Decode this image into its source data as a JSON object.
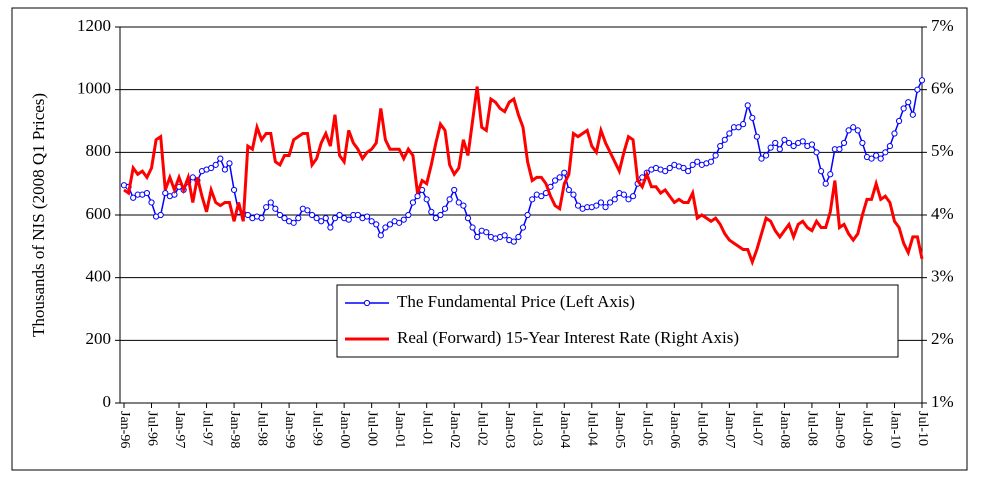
{
  "chart_data": {
    "type": "line",
    "y_label": "Thousands of NIS (2008 Q1 Prices)",
    "categories": [
      "Jan-96",
      null,
      null,
      null,
      null,
      null,
      "Jul-96",
      null,
      null,
      null,
      null,
      null,
      "Jan-97",
      null,
      null,
      null,
      null,
      null,
      "Jul-97",
      null,
      null,
      null,
      null,
      null,
      "Jan-98",
      null,
      null,
      null,
      null,
      null,
      "Jul-98",
      null,
      null,
      null,
      null,
      null,
      "Jan-99",
      null,
      null,
      null,
      null,
      null,
      "Jul-99",
      null,
      null,
      null,
      null,
      null,
      "Jan-00",
      null,
      null,
      null,
      null,
      null,
      "Jul-00",
      null,
      null,
      null,
      null,
      null,
      "Jan-01",
      null,
      null,
      null,
      null,
      null,
      "Jul-01",
      null,
      null,
      null,
      null,
      null,
      "Jan-02",
      null,
      null,
      null,
      null,
      null,
      "Jul-02",
      null,
      null,
      null,
      null,
      null,
      "Jan-03",
      null,
      null,
      null,
      null,
      null,
      "Jul-03",
      null,
      null,
      null,
      null,
      null,
      "Jan-04",
      null,
      null,
      null,
      null,
      null,
      "Jul-04",
      null,
      null,
      null,
      null,
      null,
      "Jan-05",
      null,
      null,
      null,
      null,
      null,
      "Jul-05",
      null,
      null,
      null,
      null,
      null,
      "Jan-06",
      null,
      null,
      null,
      null,
      null,
      "Jul-06",
      null,
      null,
      null,
      null,
      null,
      "Jan-07",
      null,
      null,
      null,
      null,
      null,
      "Jul-07",
      null,
      null,
      null,
      null,
      null,
      "Jan-08",
      null,
      null,
      null,
      null,
      null,
      "Jul-08",
      null,
      null,
      null,
      null,
      null,
      "Jan-09",
      null,
      null,
      null,
      null,
      null,
      "Jul-09",
      null,
      null,
      null,
      null,
      null,
      "Jan-10",
      null,
      null,
      null,
      null,
      null,
      "Jul-10"
    ],
    "series": [
      {
        "name": "The Fundamental Price (Left Axis)",
        "color": "#0000ff",
        "axis": "y",
        "marker": "circle",
        "values": [
          695,
          690,
          655,
          665,
          665,
          670,
          640,
          595,
          600,
          670,
          660,
          665,
          690,
          680,
          705,
          720,
          710,
          740,
          745,
          750,
          760,
          780,
          745,
          765,
          680,
          610,
          605,
          600,
          590,
          595,
          590,
          625,
          640,
          620,
          600,
          590,
          580,
          575,
          590,
          620,
          615,
          600,
          590,
          580,
          590,
          560,
          590,
          600,
          590,
          585,
          600,
          600,
          590,
          595,
          580,
          570,
          535,
          560,
          570,
          580,
          575,
          585,
          600,
          640,
          660,
          680,
          650,
          610,
          590,
          600,
          620,
          650,
          680,
          640,
          630,
          590,
          560,
          530,
          550,
          545,
          530,
          525,
          530,
          535,
          520,
          515,
          530,
          560,
          600,
          650,
          665,
          660,
          670,
          690,
          710,
          720,
          735,
          680,
          665,
          630,
          620,
          625,
          625,
          630,
          640,
          625,
          640,
          650,
          670,
          665,
          650,
          660,
          700,
          720,
          735,
          745,
          750,
          745,
          740,
          750,
          760,
          755,
          750,
          740,
          760,
          770,
          760,
          765,
          770,
          790,
          820,
          840,
          860,
          880,
          880,
          890,
          950,
          910,
          850,
          780,
          790,
          815,
          830,
          810,
          840,
          830,
          820,
          830,
          835,
          820,
          825,
          800,
          740,
          700,
          730,
          810,
          810,
          830,
          870,
          880,
          870,
          830,
          785,
          780,
          790,
          780,
          800,
          820,
          860,
          900,
          940,
          960,
          920,
          1000,
          1030
        ]
      },
      {
        "name": "Real (Forward) 15-Year Interest Rate (Right Axis)",
        "color": "#ff0000",
        "axis": "y2",
        "values": [
          4.4,
          4.35,
          4.75,
          4.65,
          4.7,
          4.6,
          4.75,
          5.2,
          5.25,
          4.4,
          4.6,
          4.4,
          4.6,
          4.4,
          4.6,
          4.2,
          4.6,
          4.3,
          4.05,
          4.4,
          4.2,
          4.15,
          4.2,
          4.2,
          3.9,
          4.2,
          3.9,
          5.1,
          5.05,
          5.4,
          5.2,
          5.3,
          5.3,
          4.85,
          4.8,
          4.95,
          4.95,
          5.2,
          5.25,
          5.3,
          5.3,
          4.8,
          4.9,
          5.15,
          5.3,
          5.1,
          5.6,
          4.95,
          4.85,
          5.35,
          5.15,
          5.05,
          4.9,
          5.0,
          5.05,
          5.15,
          5.7,
          5.2,
          5.05,
          5.05,
          5.05,
          4.9,
          5.05,
          4.95,
          4.35,
          4.55,
          4.5,
          4.8,
          5.15,
          5.45,
          5.35,
          4.8,
          4.65,
          4.75,
          5.2,
          4.95,
          5.5,
          6.05,
          5.4,
          5.35,
          5.85,
          5.8,
          5.7,
          5.65,
          5.8,
          5.85,
          5.6,
          5.4,
          4.85,
          4.55,
          4.6,
          4.6,
          4.5,
          4.3,
          4.15,
          4.1,
          4.5,
          4.65,
          5.3,
          5.25,
          5.3,
          5.35,
          5.1,
          5.0,
          5.35,
          5.15,
          5.0,
          4.85,
          4.7,
          5.0,
          5.25,
          5.2,
          4.55,
          4.45,
          4.65,
          4.45,
          4.45,
          4.35,
          4.4,
          4.3,
          4.2,
          4.25,
          4.2,
          4.2,
          4.35,
          3.95,
          4.0,
          3.95,
          3.9,
          3.95,
          3.85,
          3.7,
          3.6,
          3.55,
          3.5,
          3.45,
          3.45,
          3.25,
          3.45,
          3.7,
          3.95,
          3.9,
          3.75,
          3.65,
          3.75,
          3.85,
          3.65,
          3.85,
          3.9,
          3.8,
          3.75,
          3.9,
          3.8,
          3.8,
          4.05,
          4.55,
          3.8,
          3.85,
          3.7,
          3.6,
          3.7,
          4.0,
          4.25,
          4.25,
          4.5,
          4.25,
          4.3,
          4.2,
          3.9,
          3.8,
          3.55,
          3.4,
          3.65,
          3.65,
          3.3
        ]
      }
    ],
    "ylim": [
      0,
      1200
    ],
    "yticks": [
      0,
      200,
      400,
      600,
      800,
      1000,
      1200
    ],
    "y2lim": [
      1,
      7
    ],
    "y2ticks": [
      {
        "value": 1,
        "label": "1%"
      },
      {
        "value": 2,
        "label": "2%"
      },
      {
        "value": 3,
        "label": "3%"
      },
      {
        "value": 4,
        "label": "4%"
      },
      {
        "value": 5,
        "label": "5%"
      },
      {
        "value": 6,
        "label": "6%"
      },
      {
        "value": 7,
        "label": "7%"
      }
    ],
    "grid": true,
    "legend": "lower right"
  }
}
